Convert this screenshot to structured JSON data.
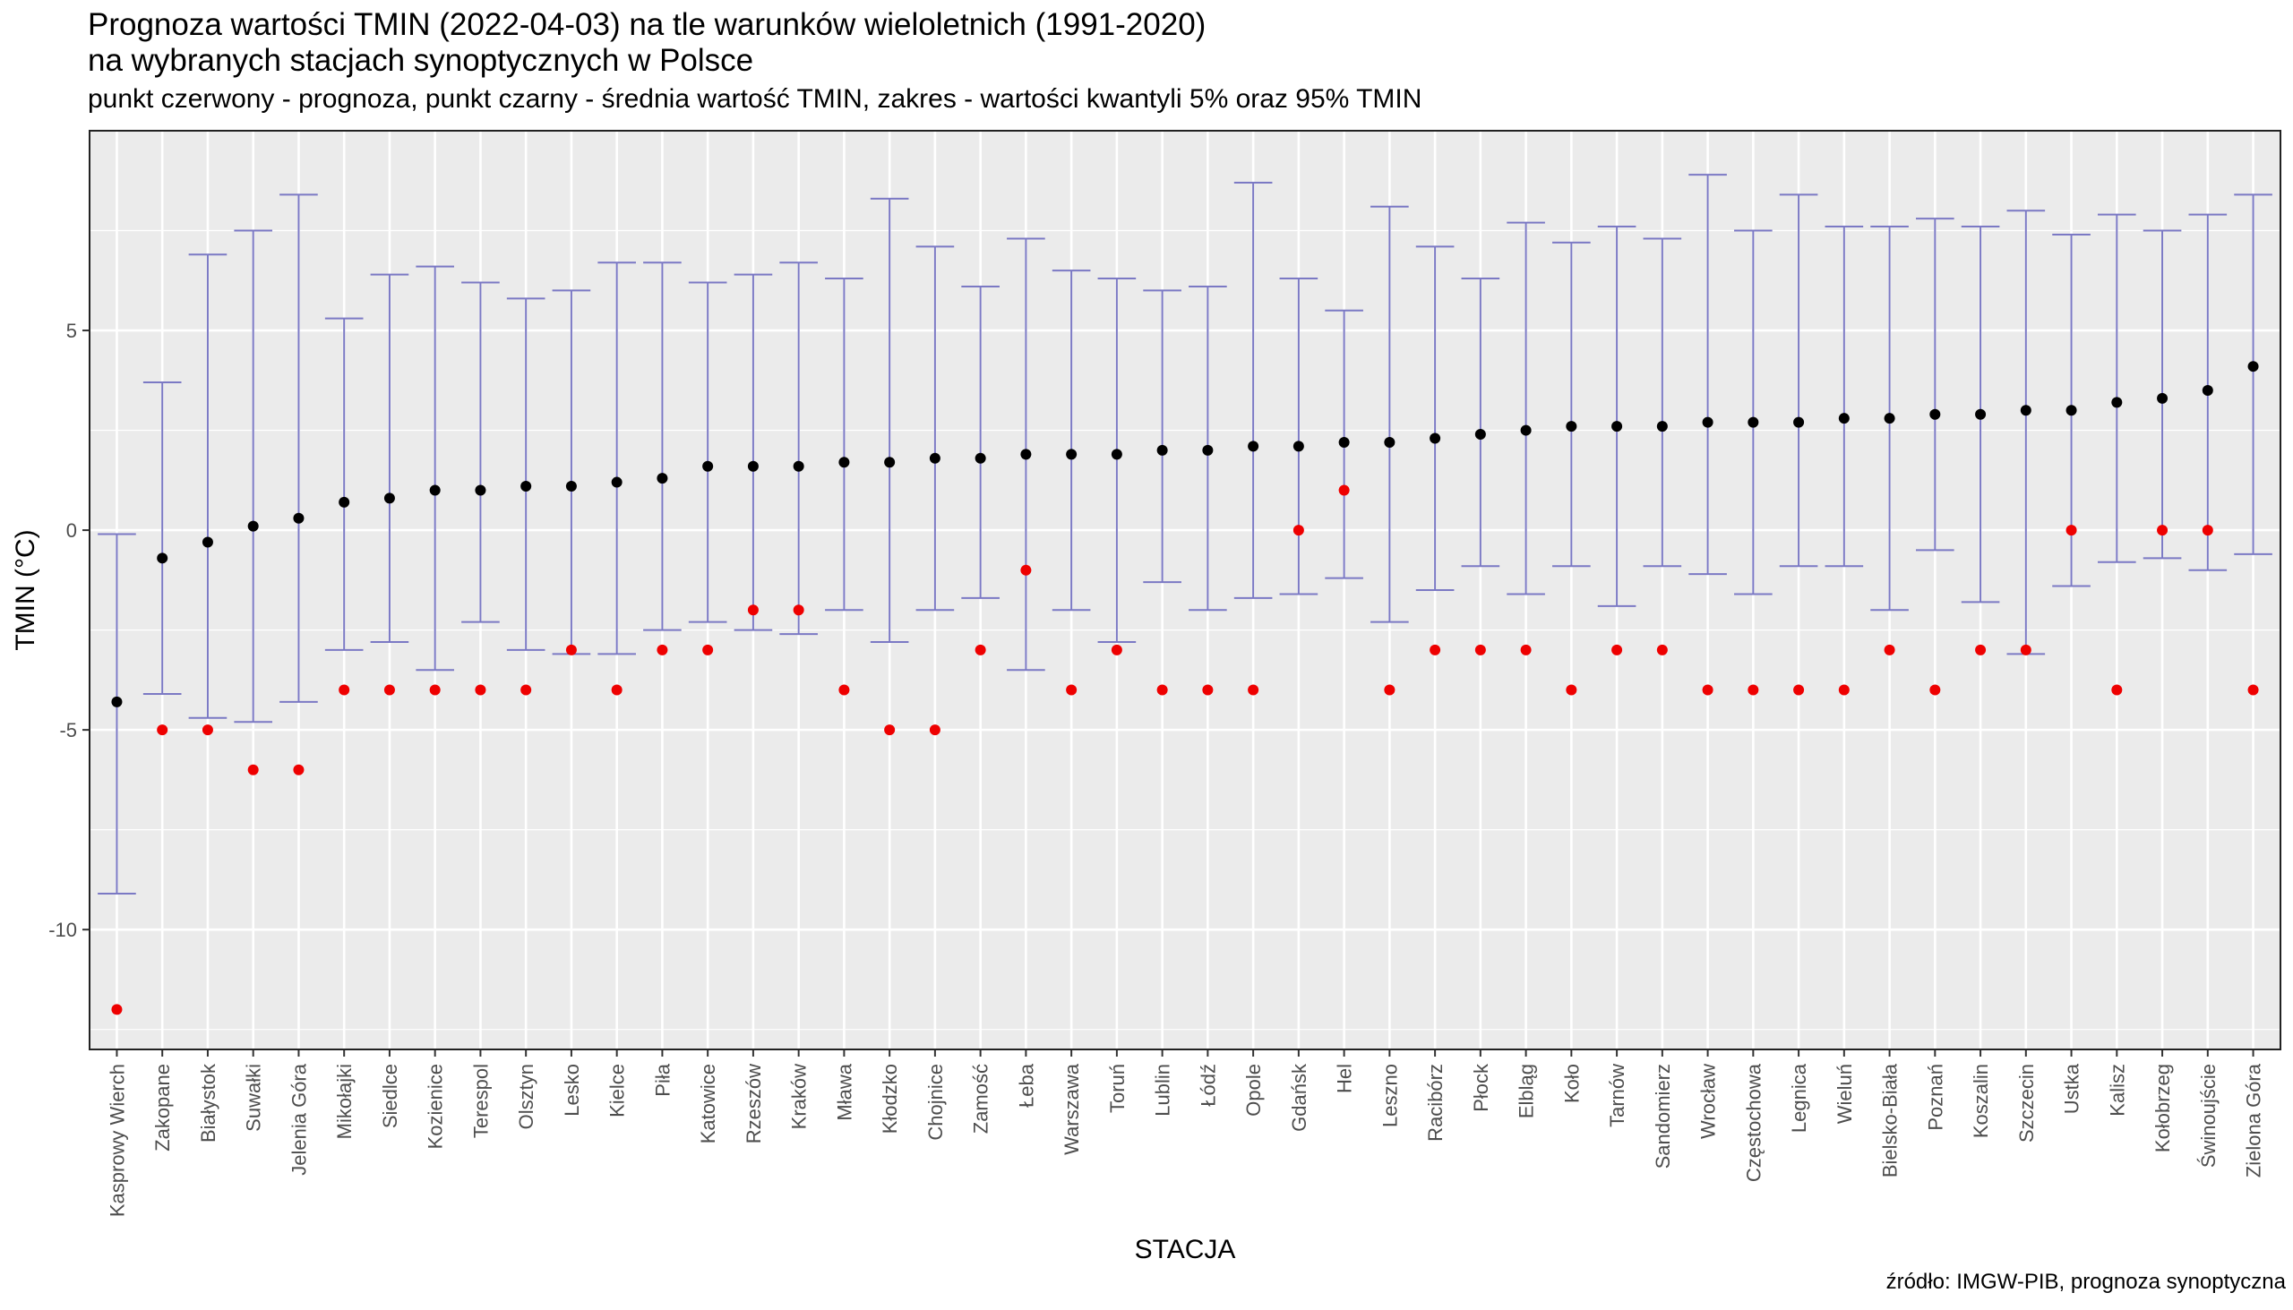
{
  "title_line1": "Prognoza wartości TMIN (2022-04-03) na tle warunków wieloletnich (1991-2020)",
  "title_line2": "na wybranych stacjach synoptycznych w Polsce",
  "subtitle": "punkt czerwony - prognoza, punkt czarny - średnia wartość TMIN, zakres - wartości kwantyli 5% oraz 95% TMIN",
  "caption": "źródło: IMGW-PIB, prognoza synoptyczna",
  "colors": {
    "panel": "#ebebeb",
    "grid": "#ffffff",
    "range": "#7b79c4",
    "mean": "#000000",
    "forecast": "#ee0000"
  },
  "chart_data": {
    "type": "scatter",
    "xlabel": "STACJA",
    "ylabel": "TMIN (°C)",
    "ylim": [
      -13,
      10
    ],
    "yticks": [
      -10,
      -5,
      0,
      5
    ],
    "grid": true,
    "categories": [
      "Kasprowy Wierch",
      "Zakopane",
      "Białystok",
      "Suwałki",
      "Jelenia Góra",
      "Mikołajki",
      "Siedlce",
      "Kozienice",
      "Terespol",
      "Olsztyn",
      "Lesko",
      "Kielce",
      "Piła",
      "Katowice",
      "Rzeszów",
      "Kraków",
      "Mława",
      "Kłodzko",
      "Chojnice",
      "Zamość",
      "Łeba",
      "Warszawa",
      "Toruń",
      "Lublin",
      "Łódź",
      "Opole",
      "Gdańsk",
      "Hel",
      "Leszno",
      "Racibórz",
      "Płock",
      "Elbląg",
      "Koło",
      "Tarnów",
      "Sandomierz",
      "Wrocław",
      "Częstochowa",
      "Legnica",
      "Wieluń",
      "Bielsko-Biała",
      "Poznań",
      "Koszalin",
      "Szczecin",
      "Ustka",
      "Kalisz",
      "Kołobrzeg",
      "Świnoujście",
      "Zielona Góra"
    ],
    "series": [
      {
        "name": "prognoza",
        "values": [
          -12,
          -5,
          -5,
          -6,
          -6,
          -4,
          -4,
          -4,
          -4,
          -4,
          -3,
          -4,
          -3,
          -3,
          -2,
          -2,
          -4,
          -5,
          -5,
          -3,
          -1,
          -4,
          -3,
          -4,
          -4,
          -4,
          0,
          1,
          -4,
          -3,
          -3,
          -3,
          -4,
          -3,
          -3,
          -4,
          -4,
          -4,
          -4,
          -3,
          -4,
          -3,
          -3,
          0,
          -4,
          0,
          0,
          -4
        ]
      },
      {
        "name": "średnia wartość TMIN",
        "values": [
          -4.3,
          -0.7,
          -0.3,
          0.1,
          0.3,
          0.7,
          0.8,
          1.0,
          1.0,
          1.1,
          1.1,
          1.2,
          1.3,
          1.6,
          1.6,
          1.6,
          1.7,
          1.7,
          1.8,
          1.8,
          1.9,
          1.9,
          1.9,
          2.0,
          2.0,
          2.1,
          2.1,
          2.2,
          2.2,
          2.3,
          2.4,
          2.5,
          2.6,
          2.6,
          2.6,
          2.7,
          2.7,
          2.7,
          2.8,
          2.8,
          2.9,
          2.9,
          3.0,
          3.0,
          3.2,
          3.3,
          3.5,
          4.1
        ]
      },
      {
        "name": "kwantyl 5%",
        "values": [
          -9.1,
          -4.1,
          -4.7,
          -4.8,
          -4.3,
          -3.0,
          -2.8,
          -3.5,
          -2.3,
          -3.0,
          -3.1,
          -3.1,
          -2.5,
          -2.3,
          -2.5,
          -2.6,
          -2.0,
          -2.8,
          -2.0,
          -1.7,
          -3.5,
          -2.0,
          -2.8,
          -1.3,
          -2.0,
          -1.7,
          -1.6,
          -1.2,
          -2.3,
          -1.5,
          -0.9,
          -1.6,
          -0.9,
          -1.9,
          -0.9,
          -1.1,
          -1.6,
          -0.9,
          -0.9,
          -2.0,
          -0.5,
          -1.8,
          -3.1,
          -1.4,
          -0.8,
          -0.7,
          -1.0,
          -0.6
        ]
      },
      {
        "name": "kwantyl 95%",
        "values": [
          -0.1,
          3.7,
          6.9,
          7.5,
          8.4,
          5.3,
          6.4,
          6.6,
          6.2,
          5.8,
          6.0,
          6.7,
          6.7,
          6.2,
          6.4,
          6.7,
          6.3,
          8.3,
          7.1,
          6.1,
          7.3,
          6.5,
          6.3,
          6.0,
          6.1,
          8.7,
          6.3,
          5.5,
          8.1,
          7.1,
          6.3,
          7.7,
          7.2,
          7.6,
          7.3,
          8.9,
          7.5,
          8.4,
          7.6,
          7.6,
          7.8,
          7.6,
          8.0,
          7.4,
          7.9,
          7.5,
          7.9,
          8.4
        ]
      }
    ]
  }
}
